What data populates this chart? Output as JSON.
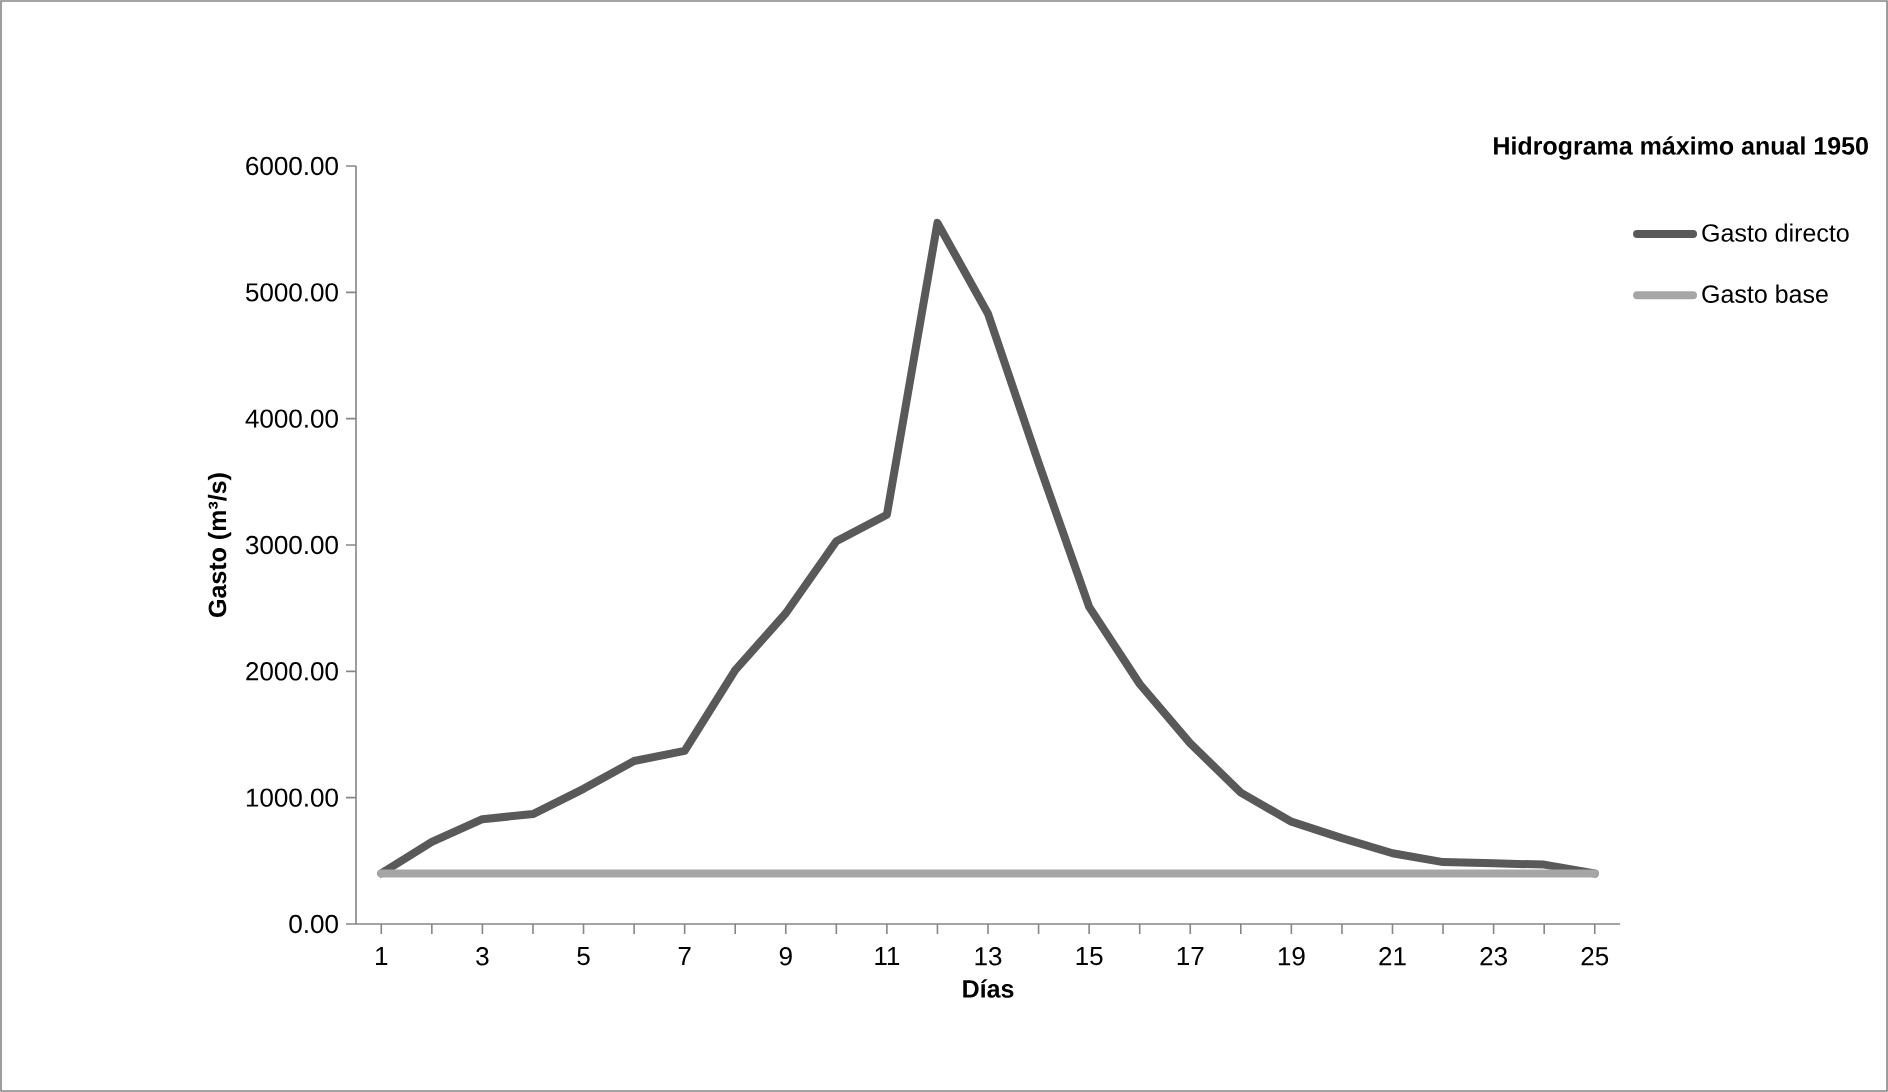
{
  "chart_data": {
    "type": "line",
    "title": "Hidrograma máximo anual 1950",
    "xlabel": "Días",
    "ylabel": "Gasto (m³/s)",
    "categories": [
      "1",
      null,
      "3",
      null,
      "5",
      null,
      "7",
      null,
      "9",
      null,
      "11",
      null,
      "13",
      null,
      "15",
      null,
      "17",
      null,
      "19",
      null,
      "21",
      null,
      "23",
      null,
      "25"
    ],
    "series": [
      {
        "name": "Gasto directo",
        "color": "#595959",
        "values": [
          400,
          650,
          830,
          870,
          1070,
          1290,
          1370,
          2010,
          2460,
          3030,
          3240,
          5550,
          4830,
          3650,
          2510,
          1900,
          1430,
          1040,
          810,
          680,
          560,
          490,
          480,
          470,
          400
        ]
      },
      {
        "name": "Gasto base",
        "color": "#a6a6a6",
        "values": [
          400,
          400,
          400,
          400,
          400,
          400,
          400,
          400,
          400,
          400,
          400,
          400,
          400,
          400,
          400,
          400,
          400,
          400,
          400,
          400,
          400,
          400,
          400,
          400,
          400
        ]
      }
    ],
    "ylim": [
      0,
      6000
    ],
    "yticks": [
      {
        "value": 0,
        "label": "0.00"
      },
      {
        "value": 1000,
        "label": "1000.00"
      },
      {
        "value": 2000,
        "label": "2000.00"
      },
      {
        "value": 3000,
        "label": "3000.00"
      },
      {
        "value": 4000,
        "label": "4000.00"
      },
      {
        "value": 5000,
        "label": "5000.00"
      },
      {
        "value": 6000,
        "label": "6000.00"
      }
    ],
    "legend": "right",
    "grid": false
  }
}
